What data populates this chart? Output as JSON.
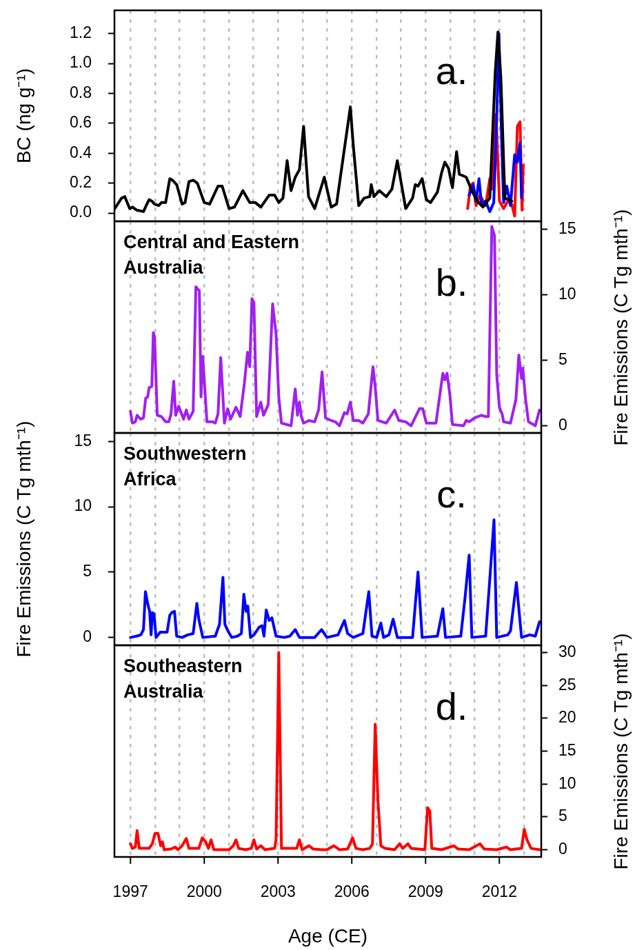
{
  "chart_data": [
    {
      "type": "line",
      "ylabel": "BC (ng g⁻¹)",
      "annotations": [
        "a."
      ],
      "xlim": [
        1996.35,
        2013.7
      ],
      "xticks": [
        1997,
        {
          "value": 1998,
          "label": null
        },
        {
          "value": 1999,
          "label": null
        },
        2000,
        {
          "value": 2001,
          "label": null
        },
        {
          "value": 2002,
          "label": null
        },
        2003,
        {
          "value": 2004,
          "label": null
        },
        {
          "value": 2005,
          "label": null
        },
        2006,
        {
          "value": 2007,
          "label": null
        },
        {
          "value": 2008,
          "label": null
        },
        2009,
        {
          "value": 2010,
          "label": null
        },
        {
          "value": 2011,
          "label": null
        },
        2012,
        {
          "value": 2013,
          "label": null
        }
      ],
      "ylim": [
        -0.055,
        1.355
      ],
      "yticks": [
        {
          "value": 0,
          "label": "0.0"
        },
        {
          "value": 0.2,
          "label": "0.2"
        },
        {
          "value": 0.4,
          "label": "0.4"
        },
        {
          "value": 0.6,
          "label": "0.6"
        },
        {
          "value": 0.8,
          "label": "0.8"
        },
        {
          "value": 1,
          "label": "1.0"
        },
        {
          "value": 1.2,
          "label": "1.2"
        }
      ],
      "grid": "x",
      "tick_labels": "y",
      "series": [
        {
          "color": "#000000",
          "x": [
            1996.36,
            1996.64,
            1996.77,
            1996.97,
            1997.08,
            1997.25,
            1997.53,
            1997.64,
            1997.76,
            1997.87,
            1997.98,
            1998.15,
            1998.26,
            1998.43,
            1998.6,
            1998.71,
            1998.88,
            1999.1,
            1999.22,
            1999.38,
            1999.55,
            1999.72,
            2000.0,
            2000.22,
            2000.56,
            2000.73,
            2001.01,
            2001.23,
            2001.57,
            2001.85,
            2002.08,
            2002.3,
            2002.64,
            2002.86,
            2003.03,
            2003.2,
            2003.37,
            2003.53,
            2003.7,
            2003.87,
            2004.04,
            2004.24,
            2004.49,
            2004.88,
            2005.16,
            2005.38,
            2005.94,
            2006.06,
            2006.28,
            2006.5,
            2006.73,
            2006.79,
            2006.9,
            2007.12,
            2007.4,
            2007.63,
            2007.85,
            2008.02,
            2008.19,
            2008.47,
            2008.58,
            2008.69,
            2008.86,
            2009.03,
            2009.2,
            2009.48,
            2009.65,
            2009.78,
            2009.93,
            2010.09,
            2010.26,
            2010.37,
            2010.65,
            2010.88,
            2011.1,
            2011.33,
            2011.61,
            2011.83,
            2011.94,
            2012.06,
            2012.22,
            2012.5
          ],
          "values": [
            0.03,
            0.1,
            0.11,
            0.03,
            0.04,
            0.02,
            0.01,
            0.05,
            0.09,
            0.08,
            0.06,
            0.05,
            0.07,
            0.07,
            0.23,
            0.22,
            0.19,
            0.06,
            0.07,
            0.21,
            0.22,
            0.2,
            0.07,
            0.06,
            0.18,
            0.18,
            0.03,
            0.04,
            0.15,
            0.07,
            0.07,
            0.04,
            0.12,
            0.12,
            0.07,
            0.1,
            0.35,
            0.15,
            0.24,
            0.29,
            0.58,
            0.11,
            0.03,
            0.24,
            0.04,
            0.06,
            0.71,
            0.45,
            0.05,
            0.1,
            0.11,
            0.19,
            0.11,
            0.15,
            0.11,
            0.16,
            0.35,
            0.19,
            0.03,
            0.1,
            0.19,
            0.18,
            0.23,
            0.09,
            0.07,
            0.14,
            0.27,
            0.34,
            0.3,
            0.17,
            0.41,
            0.26,
            0.24,
            0.15,
            0.08,
            0.04,
            0.1,
            0.94,
            1.21,
            0.9,
            0.1,
            0.08
          ]
        },
        {
          "color": "#0000ff",
          "x": [
            2010.77,
            2010.93,
            2011.05,
            2011.17,
            2011.27,
            2011.44,
            2011.61,
            2011.77,
            2011.89,
            2011.98,
            2012.09,
            2012.17,
            2012.3,
            2012.45,
            2012.62,
            2012.73,
            2012.84,
            2012.9
          ],
          "values": [
            0.12,
            0.19,
            0.08,
            0.23,
            0.06,
            0.08,
            0.01,
            0.07,
            0.64,
            1.2,
            0.49,
            0.07,
            0.18,
            0.05,
            0.39,
            0.34,
            0.47,
            0.1
          ]
        },
        {
          "color": "#ff0000",
          "x": [
            2010.71,
            2010.82,
            2010.93,
            2011.05,
            2011.21,
            2011.44,
            2011.61,
            2011.72,
            2011.86,
            2012.0,
            2012.17,
            2012.34,
            2012.5,
            2012.62,
            2012.73,
            2012.84,
            2012.92,
            2012.97
          ],
          "values": [
            0.03,
            0.18,
            0.2,
            0.05,
            0.12,
            0.05,
            0.23,
            0.16,
            0.66,
            0.08,
            0.03,
            0.08,
            0.06,
            -0.02,
            0.58,
            0.61,
            0.02,
            0.32
          ]
        }
      ]
    },
    {
      "type": "line",
      "title": "Central and Eastern Australia",
      "y2label": "Fire Emissions (C Tg mth⁻¹)",
      "annotations": [
        "b."
      ],
      "xlim": [
        1996.35,
        2013.7
      ],
      "xticks": [
        1997,
        {
          "value": 1998,
          "label": null
        },
        {
          "value": 1999,
          "label": null
        },
        2000,
        {
          "value": 2001,
          "label": null
        },
        {
          "value": 2002,
          "label": null
        },
        2003,
        {
          "value": 2004,
          "label": null
        },
        {
          "value": 2005,
          "label": null
        },
        2006,
        {
          "value": 2007,
          "label": null
        },
        {
          "value": 2008,
          "label": null
        },
        2009,
        {
          "value": 2010,
          "label": null
        },
        {
          "value": 2011,
          "label": null
        },
        2012,
        {
          "value": 2013,
          "label": null
        }
      ],
      "y2lim": [
        -0.55,
        15.6
      ],
      "y2ticks": [
        0,
        5,
        10,
        15
      ],
      "grid": "x",
      "tick_labels": "y",
      "series": [
        {
          "color": "#a020f0",
          "axis": "y2",
          "x": [
            1997.0,
            1997.08,
            1997.2,
            1997.27,
            1997.42,
            1997.53,
            1997.62,
            1997.7,
            1997.76,
            1997.87,
            1997.93,
            1997.98,
            1998.09,
            1998.26,
            1998.43,
            1998.56,
            1998.65,
            1998.76,
            1998.84,
            1998.96,
            1999.16,
            1999.27,
            1999.38,
            1999.55,
            1999.66,
            1999.8,
            1999.87,
            1999.94,
            2000.11,
            2000.34,
            2000.45,
            2000.56,
            2000.67,
            2000.82,
            2000.95,
            2001.07,
            2001.29,
            2001.46,
            2001.63,
            2001.76,
            2001.85,
            2001.94,
            2002.02,
            2002.13,
            2002.3,
            2002.41,
            2002.6,
            2002.78,
            2002.92,
            2003.03,
            2003.14,
            2003.53,
            2003.7,
            2003.79,
            2003.87,
            2003.95,
            2004.04,
            2004.26,
            2004.49,
            2004.65,
            2004.79,
            2004.93,
            2005.16,
            2005.33,
            2005.5,
            2005.7,
            2005.81,
            2005.94,
            2006.06,
            2006.28,
            2006.45,
            2006.67,
            2006.86,
            2006.95,
            2007.06,
            2007.4,
            2007.74,
            2007.91,
            2008.19,
            2008.41,
            2008.75,
            2008.88,
            2009.03,
            2009.42,
            2009.7,
            2009.78,
            2009.87,
            2009.99,
            2010.09,
            2010.54,
            2010.65,
            2010.77,
            2010.99,
            2011.27,
            2011.44,
            2011.55,
            2011.69,
            2011.8,
            2011.89,
            2012.0,
            2012.11,
            2012.17,
            2012.45,
            2012.67,
            2012.79,
            2012.9,
            2012.95,
            2013.06,
            2013.18,
            2013.46,
            2013.63
          ],
          "values": [
            1.1,
            0.2,
            0.3,
            0.8,
            0.5,
            0.6,
            2.1,
            2.2,
            2.9,
            3.0,
            7.1,
            6.8,
            0.8,
            0.7,
            0.3,
            0.3,
            0.9,
            3.4,
            0.8,
            1.5,
            0.5,
            1.2,
            0.5,
            1.1,
            10.6,
            10.3,
            2.2,
            5.3,
            0.3,
            0.3,
            0.2,
            0.9,
            5.2,
            0.2,
            1.3,
            0.5,
            1.4,
            0.7,
            3.2,
            5.6,
            4.5,
            9.7,
            9.4,
            0.7,
            1.8,
            0.8,
            1.6,
            9.3,
            7.0,
            2.2,
            0.2,
            0.0,
            2.8,
            0.8,
            1.8,
            0.7,
            0.2,
            0.4,
            0.3,
            1.2,
            4.1,
            0.6,
            0.4,
            0.3,
            0.0,
            1.0,
            0.9,
            1.8,
            0.4,
            0.4,
            0.2,
            0.9,
            4.5,
            3.0,
            0.4,
            0.2,
            1.2,
            0.4,
            0.3,
            0.0,
            1.3,
            1.3,
            0.2,
            0.2,
            4.0,
            3.5,
            4.0,
            2.3,
            0.1,
            0.0,
            0.4,
            0.3,
            0.6,
            0.8,
            0.7,
            0.7,
            15.2,
            14.5,
            3.9,
            1.4,
            0.9,
            0.3,
            0.2,
            2.0,
            5.4,
            3.6,
            4.4,
            2.1,
            0.3,
            0.0,
            1.2
          ]
        }
      ]
    },
    {
      "type": "line",
      "title": "Southwestern Africa",
      "ylabel": "Fire Emissions (C Tg mth⁻¹)",
      "annotations": [
        "c."
      ],
      "xlim": [
        1996.35,
        2013.7
      ],
      "xticks": [
        1997,
        {
          "value": 1998,
          "label": null
        },
        {
          "value": 1999,
          "label": null
        },
        2000,
        {
          "value": 2001,
          "label": null
        },
        {
          "value": 2002,
          "label": null
        },
        2003,
        {
          "value": 2004,
          "label": null
        },
        {
          "value": 2005,
          "label": null
        },
        2006,
        {
          "value": 2007,
          "label": null
        },
        {
          "value": 2008,
          "label": null
        },
        2009,
        {
          "value": 2010,
          "label": null
        },
        {
          "value": 2011,
          "label": null
        },
        2012,
        {
          "value": 2013,
          "label": null
        }
      ],
      "ylim": [
        -0.6,
        15.65
      ],
      "yticks": [
        0,
        5,
        10,
        15
      ],
      "grid": "x",
      "tick_labels": "y",
      "series": [
        {
          "color": "#0000ff",
          "x": [
            1997.0,
            1997.25,
            1997.42,
            1997.53,
            1997.61,
            1997.7,
            1997.78,
            1997.84,
            1997.89,
            1997.96,
            1998.04,
            1998.21,
            1998.43,
            1998.49,
            1998.6,
            1998.68,
            1998.79,
            1998.88,
            1999.1,
            1999.33,
            1999.55,
            1999.7,
            1999.78,
            1999.94,
            2000.45,
            2000.62,
            2000.76,
            2000.84,
            2000.99,
            2001.12,
            2001.35,
            2001.51,
            2001.61,
            2001.7,
            2001.77,
            2001.88,
            2002.02,
            2002.24,
            2002.35,
            2002.43,
            2002.52,
            2002.64,
            2002.75,
            2002.92,
            2003.25,
            2003.48,
            2003.7,
            2003.87,
            2004.49,
            2004.77,
            2004.99,
            2005.44,
            2005.7,
            2005.83,
            2006.06,
            2006.45,
            2006.69,
            2006.82,
            2007.01,
            2007.18,
            2007.29,
            2007.51,
            2007.68,
            2007.85,
            2008.47,
            2008.69,
            2008.86,
            2009.48,
            2009.7,
            2009.81,
            2010.43,
            2010.6,
            2010.77,
            2010.88,
            2011.44,
            2011.61,
            2011.78,
            2011.89,
            2012.34,
            2012.45,
            2012.69,
            2012.9,
            2013.23,
            2013.46,
            2013.63
          ],
          "values": [
            0.0,
            0.1,
            0.2,
            0.6,
            3.5,
            2.6,
            2.0,
            0.2,
            1.9,
            1.8,
            0.0,
            0.4,
            0.4,
            0.4,
            1.7,
            1.9,
            2.0,
            0.1,
            0.0,
            0.2,
            0.3,
            2.6,
            1.4,
            0.0,
            0.1,
            1.0,
            4.6,
            1.0,
            0.4,
            0.0,
            0.1,
            0.3,
            3.3,
            2.0,
            2.4,
            0.0,
            0.2,
            0.8,
            0.9,
            0.1,
            2.1,
            1.3,
            1.5,
            0.1,
            0.0,
            0.1,
            0.6,
            0.0,
            0.0,
            0.6,
            0.0,
            0.2,
            1.3,
            0.3,
            0.0,
            0.3,
            3.5,
            0.1,
            0.0,
            1.1,
            0.0,
            0.2,
            1.4,
            0.0,
            0.0,
            5.0,
            0.0,
            0.1,
            2.2,
            0.0,
            0.1,
            3.0,
            6.3,
            0.0,
            0.1,
            4.5,
            9.0,
            0.0,
            0.2,
            0.5,
            4.2,
            0.0,
            0.2,
            0.1,
            1.2
          ]
        }
      ]
    },
    {
      "type": "line",
      "title": "Southeastern Australia",
      "xlabel": "Age (CE)",
      "y2label": "Fire Emissions (C Tg mth⁻¹)",
      "annotations": [
        "d."
      ],
      "xlim": [
        1996.35,
        2013.7
      ],
      "xticks": [
        1997,
        {
          "value": 1998,
          "label": null
        },
        {
          "value": 1999,
          "label": null
        },
        2000,
        {
          "value": 2001,
          "label": null
        },
        {
          "value": 2002,
          "label": null
        },
        2003,
        {
          "value": 2004,
          "label": null
        },
        {
          "value": 2005,
          "label": null
        },
        2006,
        {
          "value": 2007,
          "label": null
        },
        {
          "value": 2008,
          "label": null
        },
        2009,
        {
          "value": 2010,
          "label": null
        },
        {
          "value": 2011,
          "label": null
        },
        2012,
        {
          "value": 2013,
          "label": null
        }
      ],
      "y2lim": [
        -1.1,
        31.1
      ],
      "y2ticks": [
        0,
        5,
        10,
        15,
        20,
        25,
        30
      ],
      "grid": "x",
      "series": [
        {
          "color": "#ff0000",
          "axis": "y2",
          "x": [
            1997.0,
            1997.08,
            1997.2,
            1997.27,
            1997.36,
            1997.76,
            1997.89,
            1998.0,
            1998.12,
            1998.23,
            1998.3,
            1998.37,
            1998.65,
            1998.82,
            1998.93,
            1999.1,
            1999.27,
            1999.38,
            1999.78,
            1999.92,
            2000.06,
            2000.17,
            2000.28,
            2000.39,
            2001.01,
            2001.18,
            2001.29,
            2001.4,
            2001.68,
            2001.91,
            2002.02,
            2002.13,
            2002.3,
            2002.47,
            2002.86,
            2002.92,
            2003.03,
            2003.14,
            2003.76,
            2003.87,
            2003.98,
            2004.26,
            2004.43,
            2004.77,
            2004.99,
            2005.27,
            2005.5,
            2005.83,
            2006.03,
            2006.17,
            2006.45,
            2006.73,
            2006.84,
            2006.95,
            2007.06,
            2007.18,
            2007.35,
            2007.74,
            2007.94,
            2008.07,
            2008.28,
            2008.41,
            2008.97,
            2009.08,
            2009.17,
            2009.25,
            2009.65,
            2010.15,
            2010.32,
            2010.77,
            2011.21,
            2011.38,
            2011.89,
            2012.28,
            2012.45,
            2012.9,
            2013.01,
            2013.12,
            2013.29,
            2013.63
          ],
          "values": [
            0.9,
            0.2,
            0.4,
            2.9,
            0.2,
            0.2,
            0.9,
            2.5,
            2.5,
            0.6,
            1.2,
            0.0,
            0.1,
            0.4,
            0.0,
            0.6,
            1.7,
            0.2,
            0.2,
            1.8,
            1.2,
            0.2,
            1.5,
            0.0,
            0.0,
            0.6,
            1.5,
            0.2,
            0.0,
            0.2,
            1.5,
            0.1,
            0.6,
            0.0,
            0.2,
            1.5,
            30.0,
            0.2,
            0.2,
            1.5,
            0.0,
            0.6,
            0.1,
            0.0,
            0.0,
            0.6,
            0.0,
            0.1,
            1.8,
            0.2,
            0.0,
            0.2,
            0.9,
            19.1,
            7.6,
            0.6,
            0.2,
            0.0,
            0.9,
            0.2,
            0.9,
            0.2,
            0.0,
            6.4,
            5.9,
            0.2,
            0.0,
            0.6,
            0.1,
            0.0,
            0.9,
            0.1,
            0.0,
            0.4,
            0.0,
            0.2,
            3.1,
            1.5,
            0.2,
            0.0
          ]
        }
      ]
    }
  ]
}
